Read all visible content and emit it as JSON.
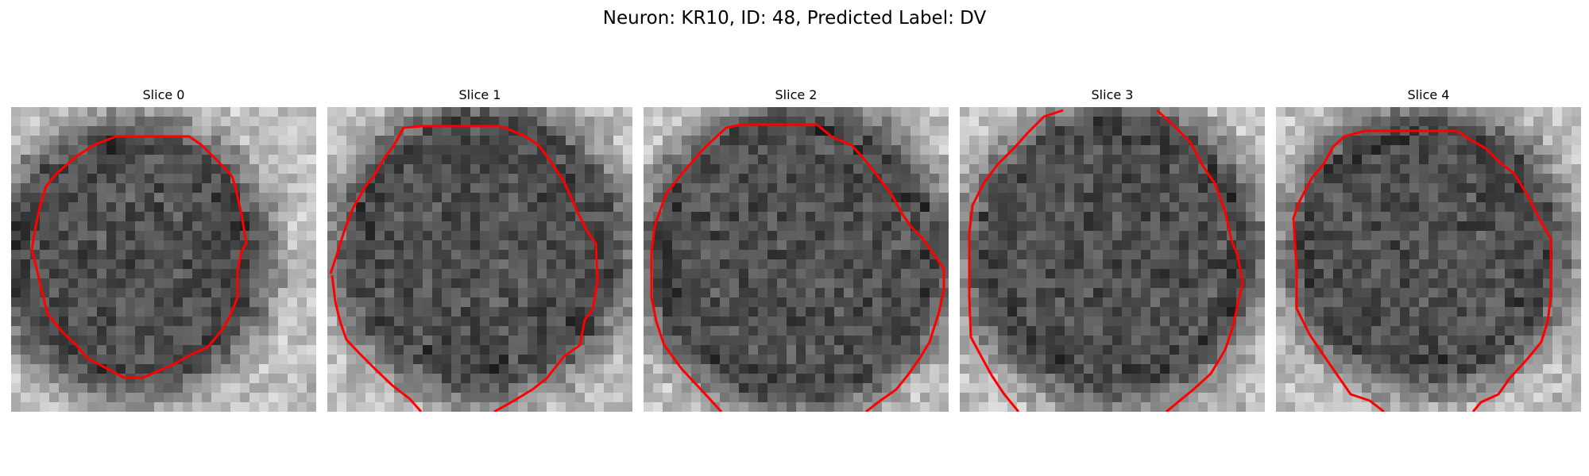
{
  "figure": {
    "title": "Neuron: KR10, ID: 48, Predicted Label: DV",
    "contour_color": "#ff0000"
  },
  "panels": [
    {
      "title": "Slice 0"
    },
    {
      "title": "Slice 1"
    },
    {
      "title": "Slice 2"
    },
    {
      "title": "Slice 3"
    },
    {
      "title": "Slice 4"
    }
  ]
}
